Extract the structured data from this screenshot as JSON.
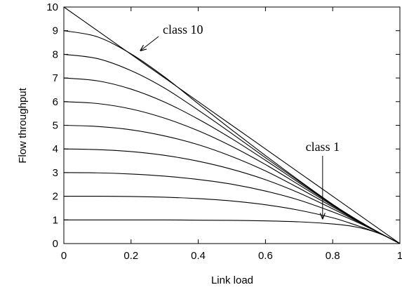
{
  "chart_data": {
    "type": "line",
    "xlabel": "Link load",
    "ylabel": "Flow throughput",
    "xlim": [
      0,
      1
    ],
    "ylim": [
      0,
      10
    ],
    "xticks": [
      "0",
      "0.2",
      "0.4",
      "0.6",
      "0.8",
      "1"
    ],
    "yticks": [
      "0",
      "1",
      "2",
      "3",
      "4",
      "5",
      "6",
      "7",
      "8",
      "9",
      "10"
    ],
    "grid": false,
    "legend": "none",
    "x": [
      0,
      0.1,
      0.2,
      0.3,
      0.4,
      0.5,
      0.6,
      0.7,
      0.8,
      0.85,
      0.9,
      0.95,
      1.0
    ],
    "series": [
      {
        "values": [
          1,
          1,
          1,
          1,
          0.99,
          0.98,
          0.96,
          0.92,
          0.83,
          0.75,
          0.6,
          0.36,
          0.0
        ]
      },
      {
        "values": [
          2,
          2,
          1.99,
          1.96,
          1.9,
          1.8,
          1.64,
          1.41,
          1.09,
          0.87,
          0.63,
          0.36,
          0.0
        ]
      },
      {
        "values": [
          3,
          2.99,
          2.94,
          2.85,
          2.71,
          2.51,
          2.22,
          1.84,
          1.34,
          1.05,
          0.72,
          0.37,
          0.0
        ]
      },
      {
        "values": [
          4,
          3.97,
          3.89,
          3.73,
          3.48,
          3.14,
          2.7,
          2.14,
          1.47,
          1.11,
          0.74,
          0.37,
          0.0
        ]
      },
      {
        "values": [
          5,
          4.95,
          4.81,
          4.55,
          4.18,
          3.68,
          3.07,
          2.34,
          1.55,
          1.15,
          0.76,
          0.37,
          0.0
        ]
      },
      {
        "values": [
          6,
          5.92,
          5.69,
          5.3,
          4.77,
          4.11,
          3.34,
          2.48,
          1.6,
          1.18,
          0.77,
          0.37,
          0.0
        ]
      },
      {
        "values": [
          7,
          6.88,
          6.53,
          5.98,
          5.26,
          4.43,
          3.52,
          2.57,
          1.63,
          1.19,
          0.77,
          0.37,
          0.0
        ]
      },
      {
        "values": [
          8,
          7.82,
          7.31,
          6.57,
          5.64,
          4.65,
          3.63,
          2.63,
          1.65,
          1.2,
          0.77,
          0.37,
          0.0
        ]
      },
      {
        "values": [
          9,
          8.74,
          8.02,
          7.04,
          5.91,
          4.8,
          3.72,
          2.67,
          1.66,
          1.2,
          0.77,
          0.37,
          0.0
        ]
      },
      {
        "values": [
          10,
          9.0,
          8.0,
          7.0,
          6.0,
          5.0,
          4.0,
          3.0,
          2.0,
          1.5,
          1.0,
          0.5,
          0.0
        ]
      }
    ],
    "annotations": [
      {
        "text": "class 10",
        "points_to": {
          "x": 0.22,
          "y": 8.1
        }
      },
      {
        "text": "class 1",
        "points_to": {
          "x": 0.77,
          "y": 0.85
        }
      }
    ]
  }
}
